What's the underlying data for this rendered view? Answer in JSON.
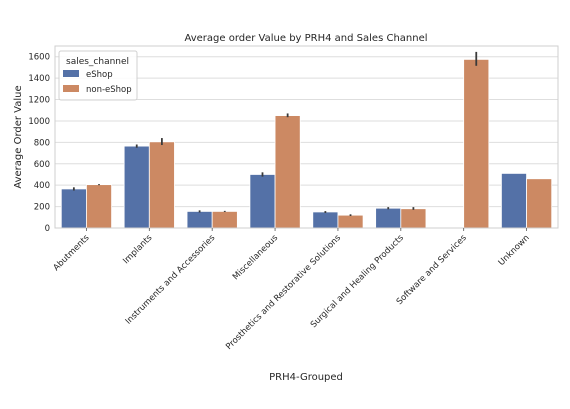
{
  "chart_data": {
    "type": "bar",
    "title": "Average order Value by PRH4 and Sales Channel",
    "xlabel": "PRH4-Grouped",
    "ylabel": "Average Order Value",
    "ylim": [
      0,
      1700
    ],
    "yticks": [
      0,
      200,
      400,
      600,
      800,
      1000,
      1200,
      1400,
      1600
    ],
    "grid": true,
    "legend": {
      "title": "sales_channel",
      "placement": "top-left"
    },
    "categories": [
      "Abutments",
      "Implants",
      "Instruments and Accessories",
      "Miscellaneous",
      "Prosthetics and Restorative Solutions",
      "Surgical and Healing Products",
      "Software and Services",
      "Unknown"
    ],
    "series": [
      {
        "name": "eShop",
        "color": "#5471a7",
        "values": [
          365,
          765,
          155,
          500,
          150,
          185,
          null,
          510
        ],
        "error_low": [
          350,
          750,
          145,
          480,
          140,
          175,
          null,
          null
        ],
        "error_high": [
          380,
          780,
          165,
          520,
          158,
          195,
          null,
          null
        ]
      },
      {
        "name": "non-eShop",
        "color": "#cc8963",
        "values": [
          405,
          805,
          155,
          1050,
          120,
          180,
          1575,
          460
        ],
        "error_low": [
          400,
          775,
          150,
          1035,
          112,
          170,
          1515,
          null
        ],
        "error_high": [
          410,
          840,
          160,
          1070,
          128,
          195,
          1645,
          null
        ]
      }
    ]
  }
}
